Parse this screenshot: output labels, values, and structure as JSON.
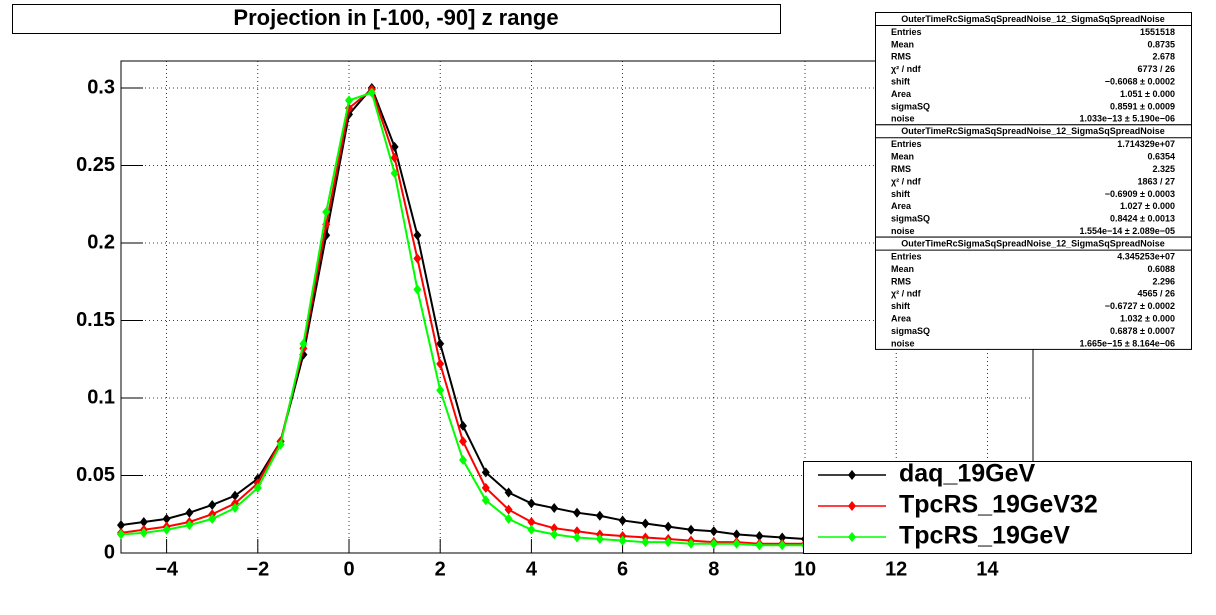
{
  "chart_data": {
    "type": "scatter",
    "title": "Projection in [-100, -90] z range",
    "xlim": [
      -5,
      15
    ],
    "ylim": [
      0,
      0.3174
    ],
    "xticks": [
      {
        "value": -4,
        "label": "−4"
      },
      {
        "value": -2,
        "label": "−2"
      },
      0,
      2,
      4,
      6,
      8,
      10,
      12,
      14
    ],
    "yticks": [
      0,
      0.05,
      0.1,
      0.15,
      0.2,
      0.25,
      0.3
    ],
    "grid": true,
    "legend": "lower right",
    "x": [
      -5,
      -4.5,
      -4,
      -3.5,
      -3,
      -2.5,
      -2,
      -1.5,
      -1,
      -0.5,
      0,
      0.5,
      1,
      1.5,
      2,
      2.5,
      3,
      3.5,
      4,
      4.5,
      5,
      5.5,
      6,
      6.5,
      7,
      7.5,
      8,
      8.5,
      9,
      9.5,
      10
    ],
    "series": [
      {
        "name": "daq_19GeV",
        "color": "#000000",
        "values": [
          0.018,
          0.02,
          0.022,
          0.026,
          0.031,
          0.037,
          0.048,
          0.072,
          0.128,
          0.205,
          0.283,
          0.3,
          0.262,
          0.205,
          0.135,
          0.082,
          0.052,
          0.039,
          0.032,
          0.029,
          0.026,
          0.024,
          0.021,
          0.019,
          0.017,
          0.015,
          0.014,
          0.012,
          0.011,
          0.01,
          0.009
        ]
      },
      {
        "name": "TpcRS_19GeV32",
        "color": "#ff0000",
        "values": [
          0.013,
          0.015,
          0.017,
          0.02,
          0.025,
          0.032,
          0.045,
          0.072,
          0.132,
          0.212,
          0.287,
          0.299,
          0.255,
          0.19,
          0.122,
          0.072,
          0.042,
          0.028,
          0.02,
          0.016,
          0.014,
          0.012,
          0.011,
          0.01,
          0.009,
          0.008,
          0.007,
          0.007,
          0.006,
          0.006,
          0.006
        ]
      },
      {
        "name": "TpcRS_19GeV",
        "color": "#00ff00",
        "values": [
          0.012,
          0.013,
          0.015,
          0.018,
          0.022,
          0.029,
          0.042,
          0.07,
          0.135,
          0.22,
          0.292,
          0.297,
          0.245,
          0.17,
          0.105,
          0.06,
          0.034,
          0.022,
          0.015,
          0.012,
          0.01,
          0.009,
          0.008,
          0.007,
          0.007,
          0.006,
          0.006,
          0.006,
          0.005,
          0.005,
          0.005
        ]
      }
    ],
    "stats_boxes": [
      {
        "title": "OuterTimeRcSigmaSqSpreadNoise_12_SigmaSqSpreadNoise",
        "rows": [
          [
            "Entries",
            "1551518"
          ],
          [
            "Mean",
            "0.8735"
          ],
          [
            "RMS",
            "2.678"
          ],
          [
            "χ² / ndf",
            "6773 / 26"
          ],
          [
            "shift",
            "−0.6068 ± 0.0002"
          ],
          [
            "Area",
            "1.051 ± 0.000"
          ],
          [
            "sigmaSQ",
            "0.8591 ± 0.0009"
          ],
          [
            "noise",
            "1.033e−13 ± 5.190e−06"
          ]
        ]
      },
      {
        "title": "OuterTimeRcSigmaSqSpreadNoise_12_SigmaSqSpreadNoise",
        "rows": [
          [
            "Entries",
            "1.714329e+07"
          ],
          [
            "Mean",
            "0.6354"
          ],
          [
            "RMS",
            "2.325"
          ],
          [
            "χ² / ndf",
            "1863 / 27"
          ],
          [
            "shift",
            "−0.6909 ± 0.0003"
          ],
          [
            "Area",
            "1.027 ± 0.000"
          ],
          [
            "sigmaSQ",
            "0.8424 ± 0.0013"
          ],
          [
            "noise",
            "1.554e−14 ± 2.089e−05"
          ]
        ]
      },
      {
        "title": "OuterTimeRcSigmaSqSpreadNoise_12_SigmaSqSpreadNoise",
        "rows": [
          [
            "Entries",
            "4.345253e+07"
          ],
          [
            "Mean",
            "0.6088"
          ],
          [
            "RMS",
            "2.296"
          ],
          [
            "χ² / ndf",
            "4565 / 26"
          ],
          [
            "shift",
            "−0.6727 ± 0.0002"
          ],
          [
            "Area",
            "1.032 ± 0.000"
          ],
          [
            "sigmaSQ",
            "0.6878 ± 0.0007"
          ],
          [
            "noise",
            "1.665e−15 ± 8.164e−06"
          ]
        ]
      }
    ]
  }
}
